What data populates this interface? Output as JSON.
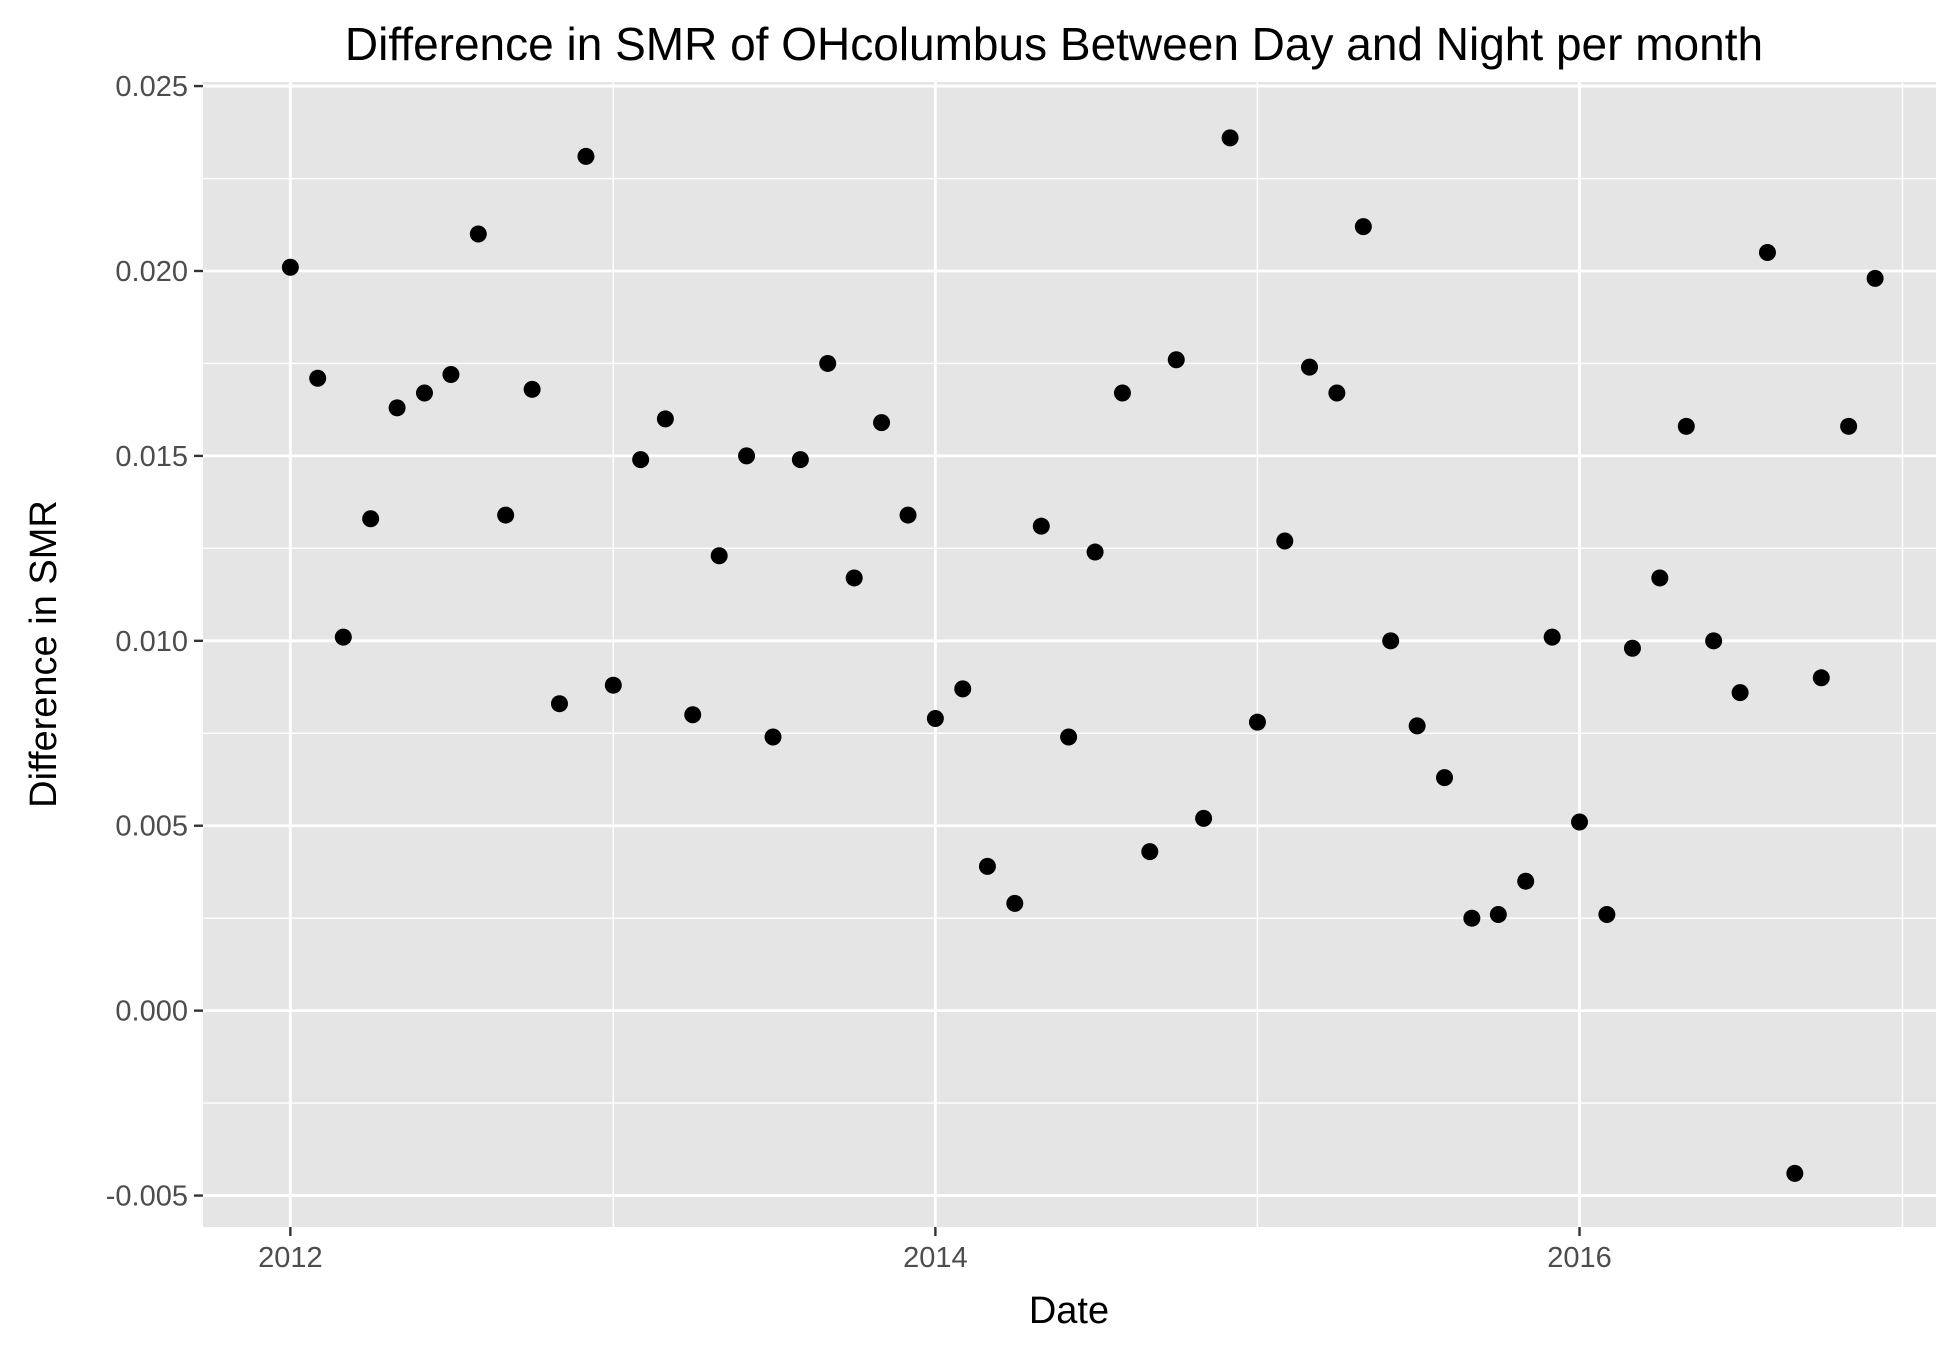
{
  "chart_data": {
    "type": "scatter",
    "title": "Difference in SMR of OHcolumbus Between Day and Night per month",
    "xlabel": "Date",
    "ylabel": "Difference in SMR",
    "x_type": "date",
    "xlim": [
      "2011-09-24",
      "2017-02-08"
    ],
    "ylim": [
      -0.00585,
      0.02511
    ],
    "x_ticks": [
      {
        "date": "2012-01-01",
        "label": "2012"
      },
      {
        "date": "2014-01-01",
        "label": "2014"
      },
      {
        "date": "2016-01-01",
        "label": "2016"
      }
    ],
    "x_minor_ticks": [
      "2013-01-01",
      "2015-01-01",
      "2017-01-01"
    ],
    "y_ticks": [
      {
        "value": -0.005,
        "label": "-0.005"
      },
      {
        "value": 0.0,
        "label": "0.000"
      },
      {
        "value": 0.005,
        "label": "0.005"
      },
      {
        "value": 0.01,
        "label": "0.010"
      },
      {
        "value": 0.015,
        "label": "0.015"
      },
      {
        "value": 0.02,
        "label": "0.020"
      },
      {
        "value": 0.025,
        "label": "0.025"
      }
    ],
    "y_minor_ticks": [
      -0.0025,
      0.0025,
      0.0075,
      0.0125,
      0.0175,
      0.0225
    ],
    "grid": true,
    "legend": "none",
    "colors": {
      "panel_background": "#e5e5e5",
      "grid_line": "#ffffff",
      "point": "#000000",
      "tick_label": "#4d4d4d",
      "tick_mark": "#333333"
    },
    "series": [
      {
        "x": [
          "2012-01-01",
          "2012-02-01",
          "2012-03-01",
          "2012-04-01",
          "2012-05-01",
          "2012-06-01",
          "2012-07-01",
          "2012-08-01",
          "2012-09-01",
          "2012-10-01",
          "2012-11-01",
          "2012-12-01",
          "2013-01-01",
          "2013-02-01",
          "2013-03-01",
          "2013-04-01",
          "2013-05-01",
          "2013-06-01",
          "2013-07-01",
          "2013-08-01",
          "2013-09-01",
          "2013-10-01",
          "2013-11-01",
          "2013-12-01",
          "2014-01-01",
          "2014-02-01",
          "2014-03-01",
          "2014-04-01",
          "2014-05-01",
          "2014-06-01",
          "2014-07-01",
          "2014-08-01",
          "2014-09-01",
          "2014-10-01",
          "2014-11-01",
          "2014-12-01",
          "2015-01-01",
          "2015-02-01",
          "2015-03-01",
          "2015-04-01",
          "2015-05-01",
          "2015-06-01",
          "2015-07-01",
          "2015-08-01",
          "2015-09-01",
          "2015-10-01",
          "2015-11-01",
          "2015-12-01",
          "2016-01-01",
          "2016-02-01",
          "2016-03-01",
          "2016-04-01",
          "2016-05-01",
          "2016-06-01",
          "2016-07-01",
          "2016-08-01",
          "2016-09-01",
          "2016-10-01",
          "2016-11-01",
          "2016-12-01"
        ],
        "y": [
          0.0201,
          0.0171,
          0.0101,
          0.0133,
          0.0163,
          0.0167,
          0.0172,
          0.021,
          0.0134,
          0.0168,
          0.0083,
          0.0231,
          0.0088,
          0.0149,
          0.016,
          0.008,
          0.0123,
          0.015,
          0.0074,
          0.0149,
          0.0175,
          0.0117,
          0.0159,
          0.0134,
          0.0079,
          0.0087,
          0.0039,
          0.0029,
          0.0131,
          0.0074,
          0.0124,
          0.0167,
          0.0043,
          0.0176,
          0.0052,
          0.0236,
          0.0078,
          0.0127,
          0.0174,
          0.0167,
          0.0212,
          0.01,
          0.0077,
          0.0063,
          0.0025,
          0.0026,
          0.0035,
          0.0101,
          0.0051,
          0.0026,
          0.0098,
          0.0117,
          0.0158,
          0.01,
          0.0086,
          0.0205,
          -0.0044,
          0.009,
          0.0158,
          0.0198
        ]
      }
    ]
  }
}
